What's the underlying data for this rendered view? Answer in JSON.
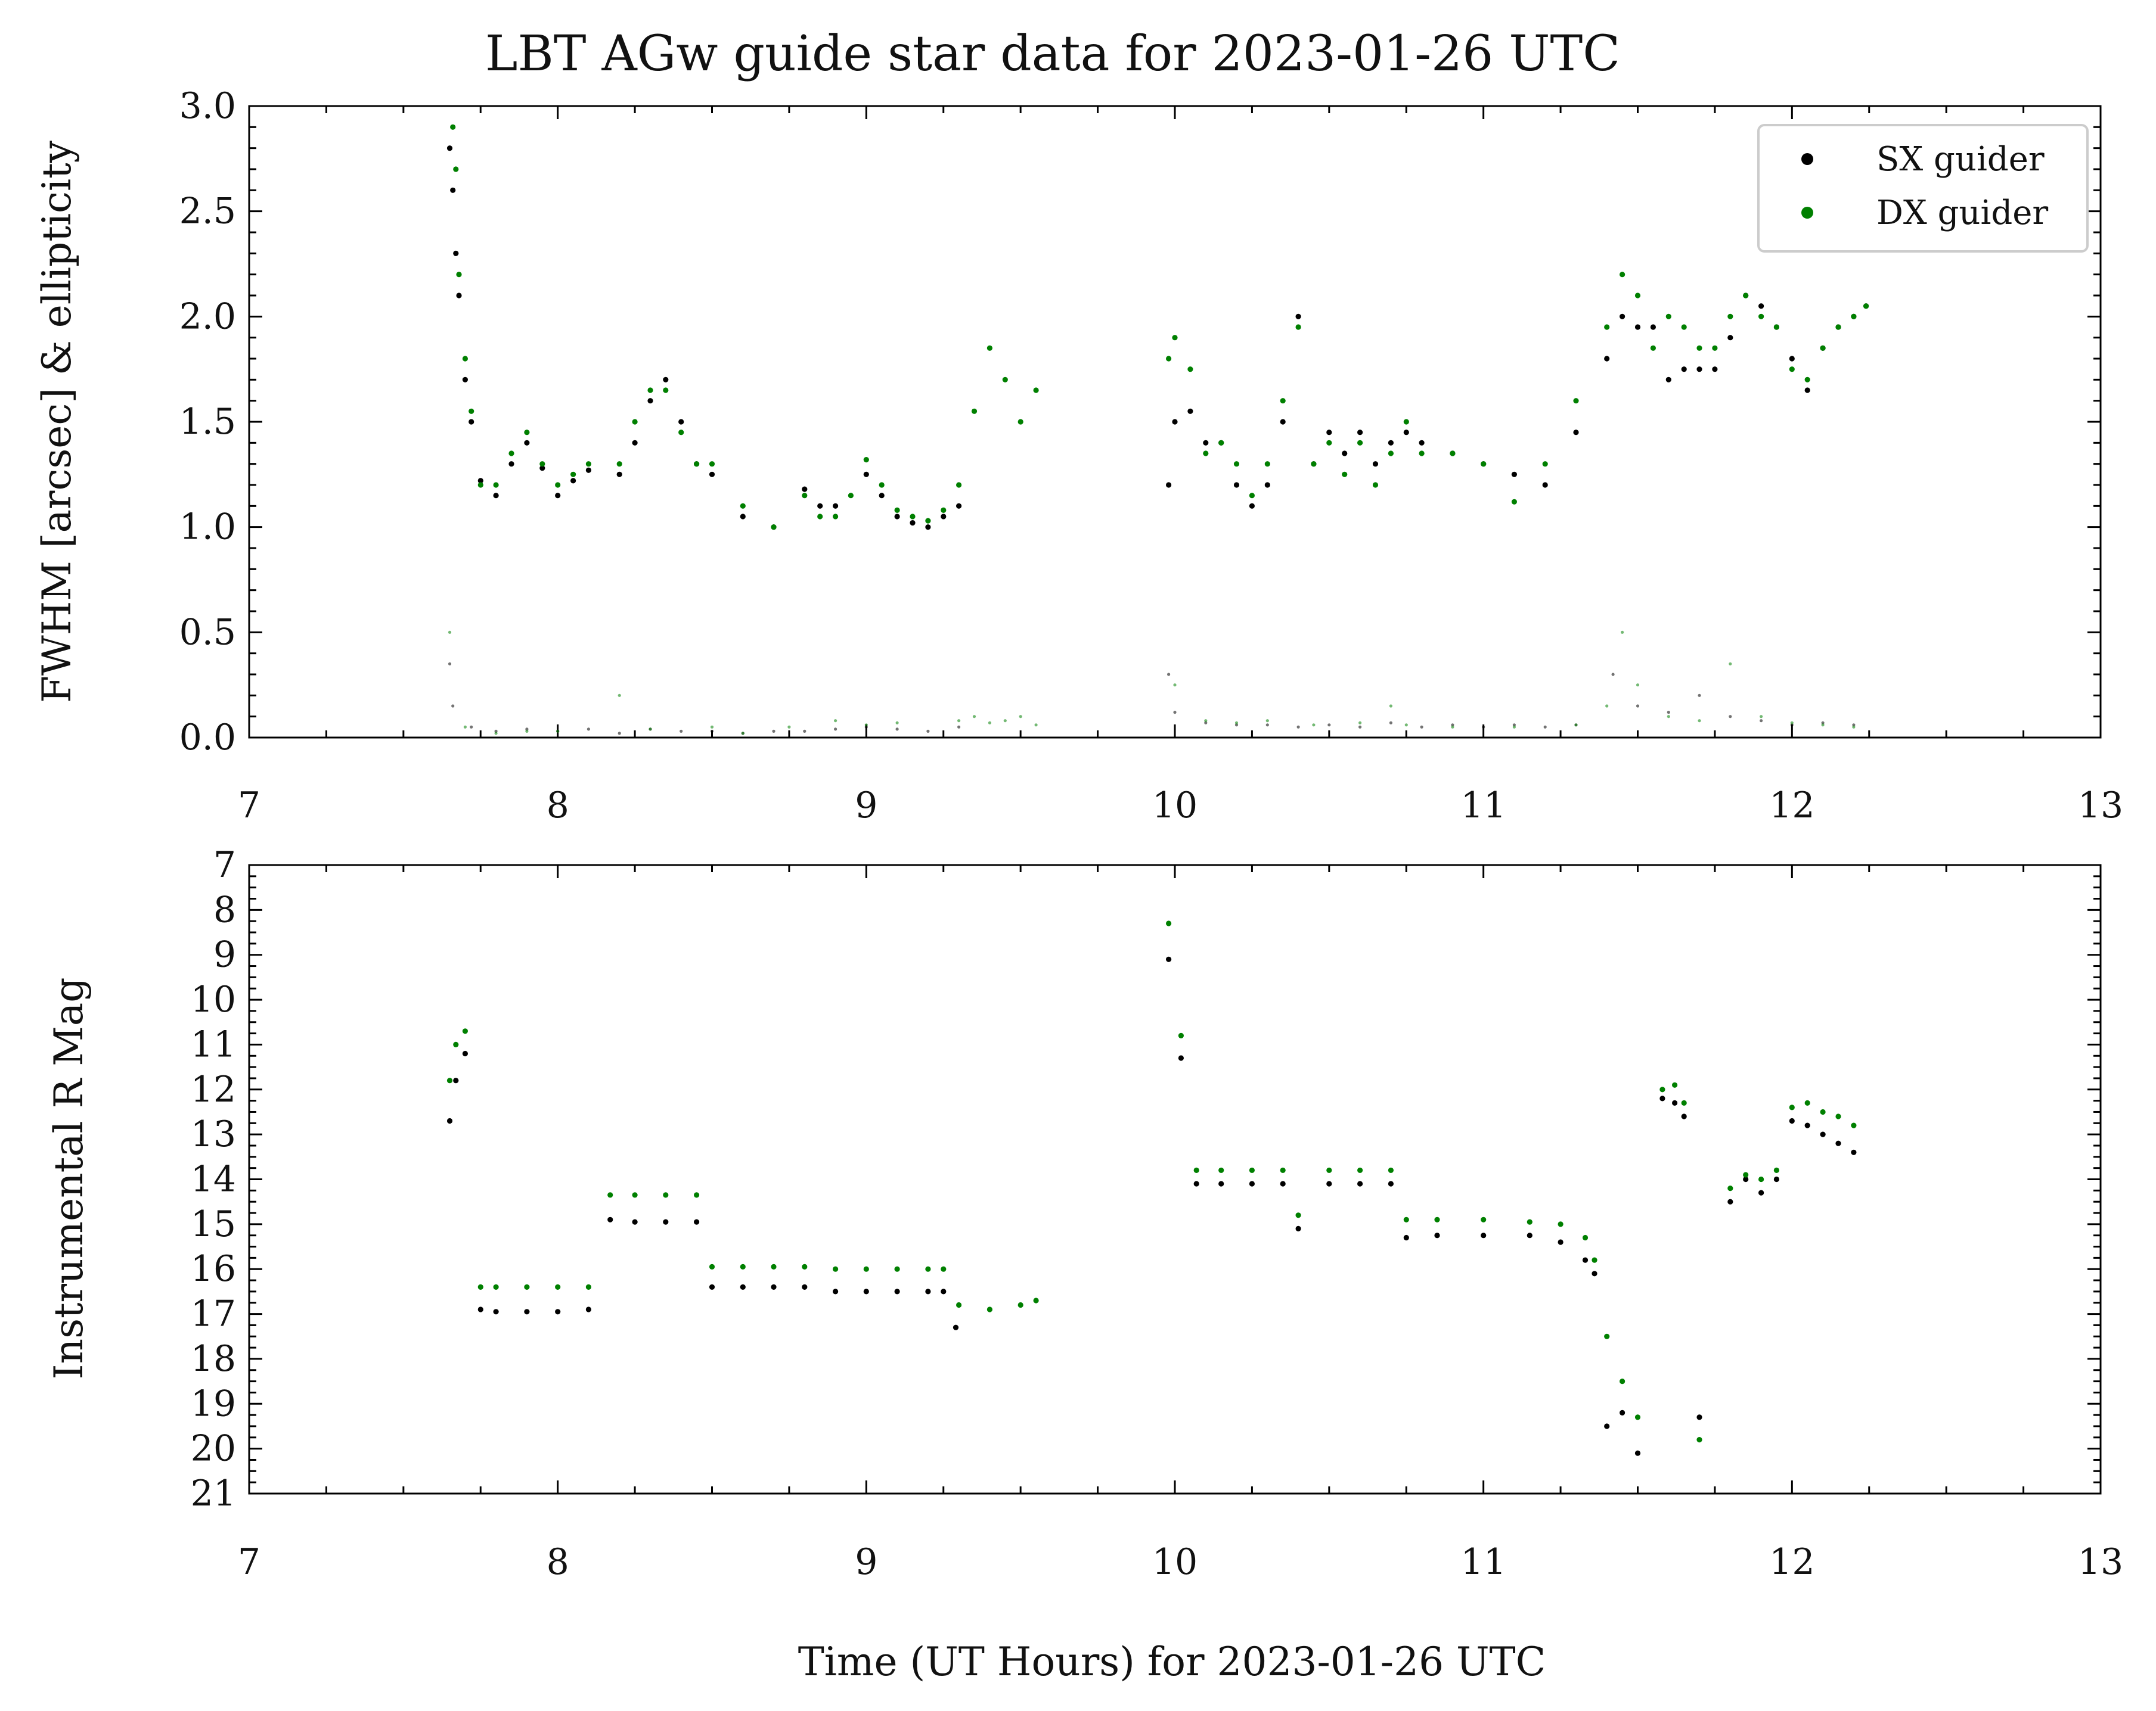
{
  "chart_data": {
    "title": "LBT AGw guide star data for 2023-01-26 UTC",
    "xlabel": "Time (UT Hours) for 2023-01-26 UTC",
    "colors": {
      "sx": "#000000",
      "dx": "#008000"
    },
    "legend": {
      "placement": "top-right",
      "entries": [
        {
          "name": "SX guider",
          "color": "#000000"
        },
        {
          "name": "DX guider",
          "color": "#008000"
        }
      ]
    },
    "panels": [
      {
        "type": "scatter",
        "ylabel": "FWHM [arcsec] & ellipticity",
        "xlim": [
          7,
          13
        ],
        "ylim": [
          0,
          3.0
        ],
        "y_inverted": false,
        "xticks": [
          7,
          8,
          9,
          10,
          11,
          12,
          13
        ],
        "xtick_labels": [
          "7",
          "8",
          "9",
          "10",
          "11",
          "12",
          "13"
        ],
        "yticks": [
          0,
          0.5,
          1.0,
          1.5,
          2.0,
          2.5,
          3.0
        ],
        "ytick_labels": [
          "0.0",
          "0.5",
          "1.0",
          "1.5",
          "2.0",
          "2.5",
          "3.0"
        ],
        "series": [
          {
            "name": "SX guider",
            "color": "#000000",
            "metric": "FWHM",
            "x": [
              7.65,
              7.66,
              7.67,
              7.68,
              7.7,
              7.72,
              7.75,
              7.8,
              7.85,
              7.9,
              7.95,
              8.0,
              8.05,
              8.1,
              8.2,
              8.25,
              8.3,
              8.35,
              8.4,
              8.45,
              8.5,
              8.6,
              8.7,
              8.8,
              8.85,
              8.9,
              9.0,
              9.05,
              9.1,
              9.15,
              9.2,
              9.25,
              9.3,
              9.98,
              10.0,
              10.05,
              10.1,
              10.15,
              10.2,
              10.25,
              10.3,
              10.35,
              10.4,
              10.45,
              10.5,
              10.55,
              10.6,
              10.65,
              10.7,
              10.75,
              10.8,
              10.9,
              11.0,
              11.1,
              11.2,
              11.3,
              11.4,
              11.45,
              11.5,
              11.55,
              11.6,
              11.65,
              11.7,
              11.75,
              11.8,
              11.85,
              11.9,
              11.95,
              12.0,
              12.05,
              12.1,
              12.15,
              12.2,
              12.24
            ],
            "y": [
              2.8,
              2.6,
              2.3,
              2.1,
              1.7,
              1.5,
              1.22,
              1.15,
              1.3,
              1.4,
              1.28,
              1.15,
              1.22,
              1.27,
              1.25,
              1.4,
              1.6,
              1.7,
              1.5,
              1.3,
              1.25,
              1.05,
              1.0,
              1.18,
              1.1,
              1.1,
              1.25,
              1.15,
              1.05,
              1.02,
              1.0,
              1.05,
              1.1,
              1.2,
              1.5,
              1.55,
              1.4,
              1.4,
              1.2,
              1.1,
              1.2,
              1.5,
              2.0,
              1.3,
              1.45,
              1.35,
              1.45,
              1.3,
              1.4,
              1.45,
              1.4,
              1.35,
              1.3,
              1.25,
              1.2,
              1.45,
              1.8,
              2.0,
              1.95,
              1.95,
              1.7,
              1.75,
              1.75,
              1.75,
              1.9,
              2.1,
              2.05,
              1.95,
              1.8,
              1.65,
              1.85,
              1.95,
              2.0,
              2.05
            ]
          },
          {
            "name": "DX guider",
            "color": "#008000",
            "metric": "FWHM",
            "x": [
              7.66,
              7.67,
              7.68,
              7.7,
              7.72,
              7.75,
              7.8,
              7.85,
              7.9,
              7.95,
              8.0,
              8.05,
              8.1,
              8.2,
              8.25,
              8.3,
              8.35,
              8.4,
              8.45,
              8.5,
              8.6,
              8.7,
              8.8,
              8.85,
              8.9,
              8.95,
              9.0,
              9.05,
              9.1,
              9.15,
              9.2,
              9.25,
              9.3,
              9.35,
              9.4,
              9.45,
              9.5,
              9.55,
              9.98,
              10.0,
              10.05,
              10.1,
              10.15,
              10.2,
              10.25,
              10.3,
              10.35,
              10.4,
              10.45,
              10.5,
              10.55,
              10.6,
              10.65,
              10.7,
              10.75,
              10.8,
              10.9,
              11.0,
              11.1,
              11.2,
              11.3,
              11.4,
              11.45,
              11.5,
              11.55,
              11.6,
              11.65,
              11.7,
              11.75,
              11.8,
              11.85,
              11.9,
              11.95,
              12.0,
              12.05,
              12.1,
              12.15,
              12.2,
              12.24
            ],
            "y": [
              2.9,
              2.7,
              2.2,
              1.8,
              1.55,
              1.2,
              1.2,
              1.35,
              1.45,
              1.3,
              1.2,
              1.25,
              1.3,
              1.3,
              1.5,
              1.65,
              1.65,
              1.45,
              1.3,
              1.3,
              1.1,
              1.0,
              1.15,
              1.05,
              1.05,
              1.15,
              1.32,
              1.2,
              1.08,
              1.05,
              1.03,
              1.08,
              1.2,
              1.55,
              1.85,
              1.7,
              1.5,
              1.65,
              1.8,
              1.9,
              1.75,
              1.35,
              1.4,
              1.3,
              1.15,
              1.3,
              1.6,
              1.95,
              1.3,
              1.4,
              1.25,
              1.4,
              1.2,
              1.35,
              1.5,
              1.35,
              1.35,
              1.3,
              1.12,
              1.3,
              1.6,
              1.95,
              2.2,
              2.1,
              1.85,
              2.0,
              1.95,
              1.85,
              1.85,
              2.0,
              2.1,
              2.0,
              1.95,
              1.75,
              1.7,
              1.85,
              1.95,
              2.0,
              2.05
            ]
          },
          {
            "name": "SX guider",
            "color": "#000000",
            "metric": "ellipticity",
            "x": [
              7.65,
              7.66,
              7.72,
              7.8,
              7.9,
              8.0,
              8.1,
              8.2,
              8.3,
              8.4,
              8.5,
              8.6,
              8.7,
              8.8,
              8.9,
              9.0,
              9.1,
              9.2,
              9.3,
              9.98,
              10.0,
              10.1,
              10.2,
              10.3,
              10.4,
              10.5,
              10.6,
              10.7,
              10.8,
              10.9,
              11.0,
              11.1,
              11.2,
              11.3,
              11.42,
              11.5,
              11.6,
              11.7,
              11.8,
              11.9,
              12.0,
              12.1,
              12.2
            ],
            "y": [
              0.35,
              0.15,
              0.05,
              0.03,
              0.04,
              0.03,
              0.04,
              0.02,
              0.04,
              0.03,
              0.03,
              0.02,
              0.03,
              0.03,
              0.04,
              0.05,
              0.04,
              0.03,
              0.05,
              0.3,
              0.12,
              0.07,
              0.06,
              0.06,
              0.05,
              0.06,
              0.05,
              0.07,
              0.05,
              0.06,
              0.05,
              0.06,
              0.05,
              0.06,
              0.3,
              0.15,
              0.12,
              0.2,
              0.1,
              0.08,
              0.06,
              0.07,
              0.06
            ]
          },
          {
            "name": "DX guider",
            "color": "#008000",
            "metric": "ellipticity",
            "x": [
              7.65,
              7.7,
              7.8,
              7.9,
              8.0,
              8.2,
              8.3,
              8.5,
              8.6,
              8.75,
              8.9,
              9.0,
              9.1,
              9.3,
              9.35,
              9.4,
              9.45,
              9.5,
              9.55,
              10.0,
              10.1,
              10.2,
              10.3,
              10.45,
              10.6,
              10.7,
              10.75,
              10.9,
              11.1,
              11.3,
              11.4,
              11.45,
              11.5,
              11.6,
              11.7,
              11.8,
              11.9,
              12.0,
              12.1,
              12.2
            ],
            "y": [
              0.5,
              0.05,
              0.02,
              0.03,
              0.03,
              0.2,
              0.04,
              0.05,
              0.02,
              0.05,
              0.08,
              0.06,
              0.07,
              0.08,
              0.1,
              0.07,
              0.08,
              0.1,
              0.06,
              0.25,
              0.08,
              0.07,
              0.08,
              0.06,
              0.07,
              0.15,
              0.06,
              0.05,
              0.05,
              0.06,
              0.15,
              0.5,
              0.25,
              0.1,
              0.08,
              0.35,
              0.1,
              0.07,
              0.06,
              0.05
            ]
          }
        ]
      },
      {
        "type": "scatter",
        "ylabel": "Instrumental R Mag",
        "xlim": [
          7,
          13
        ],
        "ylim": [
          21,
          7
        ],
        "y_inverted": true,
        "xticks": [
          7,
          8,
          9,
          10,
          11,
          12,
          13
        ],
        "xtick_labels": [
          "7",
          "8",
          "9",
          "10",
          "11",
          "12",
          "13"
        ],
        "yticks": [
          7,
          8,
          9,
          10,
          11,
          12,
          13,
          14,
          15,
          16,
          17,
          18,
          19,
          20,
          21
        ],
        "ytick_labels": [
          "7",
          "8",
          "9",
          "10",
          "11",
          "12",
          "13",
          "14",
          "15",
          "16",
          "17",
          "18",
          "19",
          "20",
          "21"
        ],
        "series": [
          {
            "name": "SX guider",
            "color": "#000000",
            "x": [
              7.65,
              7.67,
              7.7,
              7.75,
              7.8,
              7.9,
              8.0,
              8.1,
              8.17,
              8.25,
              8.35,
              8.45,
              8.5,
              8.6,
              8.7,
              8.8,
              8.9,
              9.0,
              9.1,
              9.2,
              9.25,
              9.29,
              9.98,
              10.02,
              10.07,
              10.15,
              10.25,
              10.35,
              10.4,
              10.5,
              10.6,
              10.7,
              10.75,
              10.85,
              11.0,
              11.15,
              11.25,
              11.33,
              11.36,
              11.4,
              11.45,
              11.5,
              11.58,
              11.62,
              11.65,
              11.7,
              11.8,
              11.85,
              11.9,
              11.95,
              12.0,
              12.05,
              12.1,
              12.15,
              12.2
            ],
            "y": [
              12.7,
              11.8,
              11.2,
              16.9,
              16.95,
              16.95,
              16.95,
              16.9,
              14.9,
              14.95,
              14.95,
              14.95,
              16.4,
              16.4,
              16.4,
              16.4,
              16.5,
              16.5,
              16.5,
              16.5,
              16.5,
              17.3,
              9.1,
              11.3,
              14.1,
              14.1,
              14.1,
              14.1,
              15.1,
              14.1,
              14.1,
              14.1,
              15.3,
              15.25,
              15.25,
              15.25,
              15.4,
              15.8,
              16.1,
              19.5,
              19.2,
              20.1,
              12.2,
              12.3,
              12.6,
              19.3,
              14.5,
              14.0,
              14.3,
              14.0,
              12.7,
              12.8,
              13.0,
              13.2,
              13.4
            ]
          },
          {
            "name": "DX guider",
            "color": "#008000",
            "x": [
              7.65,
              7.67,
              7.7,
              7.75,
              7.8,
              7.9,
              8.0,
              8.1,
              8.17,
              8.25,
              8.35,
              8.45,
              8.5,
              8.6,
              8.7,
              8.8,
              8.9,
              9.0,
              9.1,
              9.2,
              9.25,
              9.3,
              9.4,
              9.5,
              9.55,
              9.98,
              10.02,
              10.07,
              10.15,
              10.25,
              10.35,
              10.4,
              10.5,
              10.6,
              10.7,
              10.75,
              10.85,
              11.0,
              11.15,
              11.25,
              11.33,
              11.36,
              11.4,
              11.45,
              11.5,
              11.58,
              11.62,
              11.65,
              11.7,
              11.8,
              11.85,
              11.9,
              11.95,
              12.0,
              12.05,
              12.1,
              12.15,
              12.2
            ],
            "y": [
              11.8,
              11.0,
              10.7,
              16.4,
              16.4,
              16.4,
              16.4,
              16.4,
              14.35,
              14.35,
              14.35,
              14.35,
              15.95,
              15.95,
              15.95,
              15.95,
              16.0,
              16.0,
              16.0,
              16.0,
              16.0,
              16.8,
              16.9,
              16.8,
              16.7,
              8.3,
              10.8,
              13.8,
              13.8,
              13.8,
              13.8,
              14.8,
              13.8,
              13.8,
              13.8,
              14.9,
              14.9,
              14.9,
              14.95,
              15.0,
              15.3,
              15.8,
              17.5,
              18.5,
              19.3,
              12.0,
              11.9,
              12.3,
              19.8,
              14.2,
              13.9,
              14.0,
              13.8,
              12.4,
              12.3,
              12.5,
              12.6,
              12.8
            ]
          }
        ]
      }
    ]
  }
}
